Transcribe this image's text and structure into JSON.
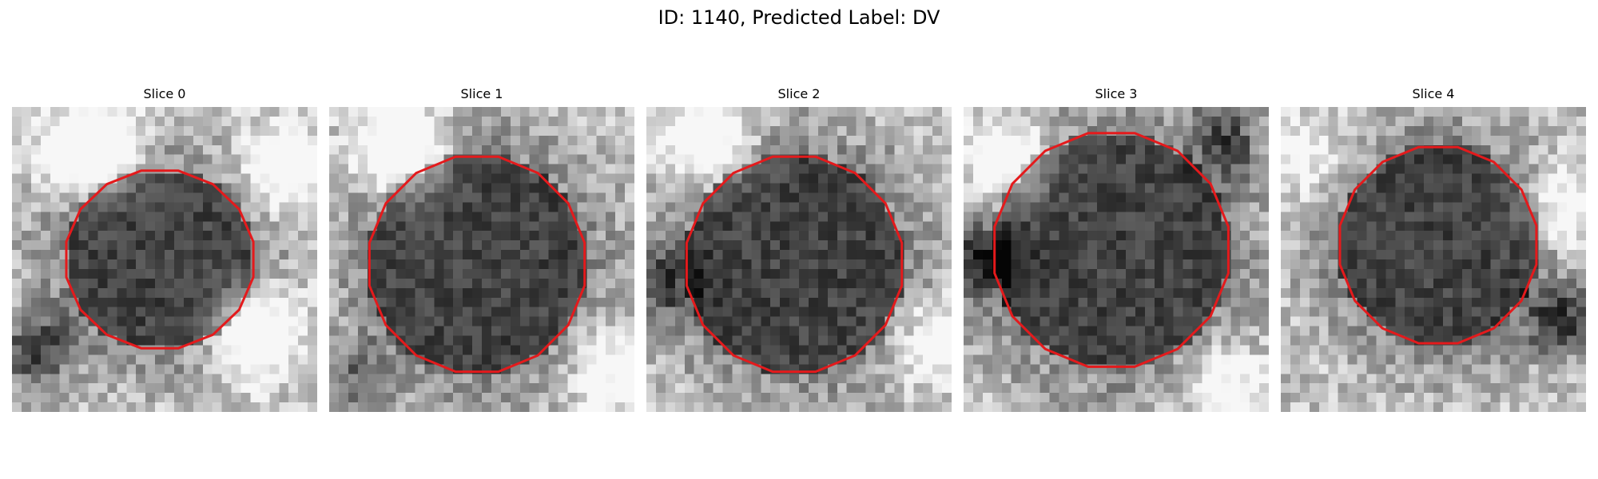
{
  "figure": {
    "title": "ID: 1140, Predicted Label: DV"
  },
  "panels": [
    {
      "title": "Slice 0"
    },
    {
      "title": "Slice 1"
    },
    {
      "title": "Slice 2"
    },
    {
      "title": "Slice 3"
    },
    {
      "title": "Slice 4"
    }
  ],
  "colors": {
    "contour": "#e41a1c",
    "background": "#ffffff"
  }
}
